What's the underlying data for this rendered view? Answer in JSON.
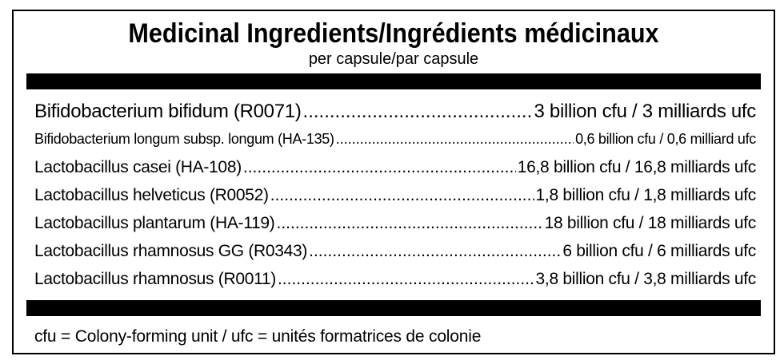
{
  "header": {
    "title": "Medicinal Ingredients/Ingrédients médicinaux",
    "subtitle": "per capsule/par capsule"
  },
  "ingredients": [
    {
      "name": "Bifidobacterium bifidum (R0071)",
      "amount": "3 billion cfu / 3 milliards ufc"
    },
    {
      "name": "Bifidobacterium longum subsp. longum (HA-135)",
      "amount": "0,6 billion cfu / 0,6 milliard ufc"
    },
    {
      "name": "Lactobacillus casei (HA-108)",
      "amount": "16,8 billion cfu / 16,8 milliards ufc"
    },
    {
      "name": "Lactobacillus helveticus (R0052)",
      "amount": "1,8 billion cfu / 1,8 milliards ufc"
    },
    {
      "name": "Lactobacillus plantarum (HA-119)",
      "amount": "18 billion cfu / 18 milliards ufc"
    },
    {
      "name": "Lactobacillus rhamnosus GG (R0343)",
      "amount": "6 billion cfu / 6 milliards ufc"
    },
    {
      "name": "Lactobacillus rhamnosus (R0011)",
      "amount": "3,8 billion cfu / 3,8 milliards ufc"
    }
  ],
  "footnote": "cfu = Colony-forming unit / ufc = unités formatrices de colonie",
  "colors": {
    "text": "#000000",
    "background": "#ffffff",
    "rule": "#000000"
  }
}
